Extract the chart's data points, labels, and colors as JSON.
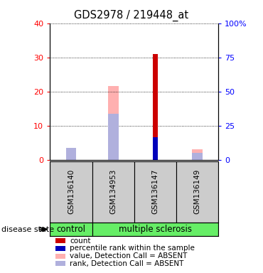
{
  "title": "GDS2978 / 219448_at",
  "samples": [
    "GSM136140",
    "GSM134953",
    "GSM136147",
    "GSM136149"
  ],
  "ylim_left": [
    0,
    40
  ],
  "ylim_right": [
    0,
    100
  ],
  "yticks_left": [
    0,
    10,
    20,
    30,
    40
  ],
  "yticks_right": [
    0,
    25,
    50,
    75,
    100
  ],
  "yticklabels_right": [
    "0",
    "25",
    "50",
    "75",
    "100%"
  ],
  "bars": {
    "GSM136140": {
      "value_absent": 1.5,
      "rank_absent": 3.5,
      "count": 0.0,
      "percentile": 0.0
    },
    "GSM134953": {
      "value_absent": 21.5,
      "rank_absent": 13.5,
      "count": 0.0,
      "percentile": 0.0
    },
    "GSM136147": {
      "value_absent": 0.0,
      "rank_absent": 0.0,
      "count": 31.0,
      "percentile": 16.5
    },
    "GSM136149": {
      "value_absent": 3.0,
      "rank_absent": 2.0,
      "count": 0.0,
      "percentile": 0.0
    }
  },
  "colors": {
    "count": "#cc0000",
    "percentile": "#0000bb",
    "value_absent": "#ffb0b0",
    "rank_absent": "#b0b0dd",
    "sample_bg": "#cccccc",
    "green_bg": "#66ee66"
  },
  "legend": [
    {
      "label": "count",
      "color": "#cc0000"
    },
    {
      "label": "percentile rank within the sample",
      "color": "#0000bb"
    },
    {
      "label": "value, Detection Call = ABSENT",
      "color": "#ffb0b0"
    },
    {
      "label": "rank, Detection Call = ABSENT",
      "color": "#b0b0dd"
    }
  ],
  "bar_positions": [
    1,
    2,
    3,
    4
  ],
  "thin_bar_width": 0.12,
  "wide_bar_width": 0.25
}
